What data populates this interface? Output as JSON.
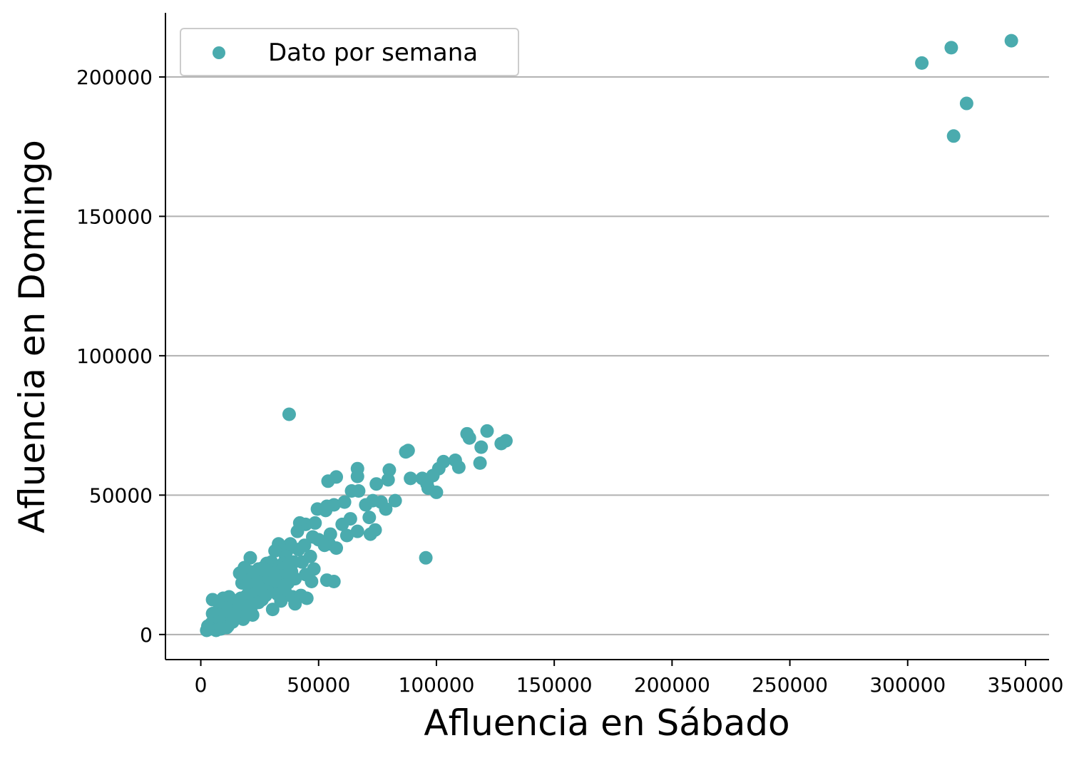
{
  "chart_data": {
    "type": "scatter",
    "xlabel": "Afluencia en Sábado",
    "ylabel": "Afluencia en Domingo",
    "xlim": [
      -15000,
      360000
    ],
    "ylim": [
      -9000,
      223000
    ],
    "xticks": [
      0,
      50000,
      100000,
      150000,
      200000,
      250000,
      300000,
      350000
    ],
    "xtick_labels": [
      "0",
      "50000",
      "100000",
      "150000",
      "200000",
      "250000",
      "300000",
      "350000"
    ],
    "yticks": [
      0,
      50000,
      100000,
      150000,
      200000
    ],
    "ytick_labels": [
      "0",
      "50000",
      "100000",
      "150000",
      "200000"
    ],
    "grid": "horizontal",
    "legend_position": "top-left",
    "marker_color": "#4AABAE",
    "series": [
      {
        "name": "Dato por semana",
        "points": [
          [
            306000,
            205000
          ],
          [
            318500,
            210500
          ],
          [
            344000,
            213000
          ],
          [
            325000,
            190500
          ],
          [
            319500,
            178800
          ],
          [
            37500,
            79000
          ],
          [
            95500,
            27500
          ],
          [
            129500,
            69500
          ],
          [
            121500,
            73000
          ],
          [
            127500,
            68500
          ],
          [
            113000,
            72000
          ],
          [
            114000,
            70500
          ],
          [
            119000,
            67200
          ],
          [
            118500,
            61500
          ],
          [
            108000,
            62500
          ],
          [
            109500,
            60000
          ],
          [
            103000,
            62000
          ],
          [
            101000,
            59500
          ],
          [
            98500,
            57000
          ],
          [
            96000,
            54000
          ],
          [
            94000,
            56000
          ],
          [
            96500,
            52500
          ],
          [
            100000,
            51000
          ],
          [
            89000,
            56000
          ],
          [
            87000,
            65500
          ],
          [
            88000,
            66000
          ],
          [
            80000,
            59000
          ],
          [
            79500,
            55500
          ],
          [
            74500,
            54000
          ],
          [
            66500,
            59500
          ],
          [
            66500,
            56700
          ],
          [
            57500,
            56500
          ],
          [
            54000,
            55000
          ],
          [
            64000,
            51500
          ],
          [
            67000,
            51500
          ],
          [
            73000,
            48000
          ],
          [
            76500,
            47500
          ],
          [
            78500,
            45000
          ],
          [
            82500,
            48000
          ],
          [
            70000,
            46500
          ],
          [
            71500,
            42000
          ],
          [
            74000,
            37500
          ],
          [
            72000,
            36000
          ],
          [
            66500,
            37000
          ],
          [
            63500,
            41500
          ],
          [
            61000,
            47500
          ],
          [
            56500,
            46500
          ],
          [
            53500,
            46000
          ],
          [
            49500,
            45000
          ],
          [
            53000,
            44500
          ],
          [
            60000,
            39500
          ],
          [
            62000,
            35500
          ],
          [
            57500,
            31000
          ],
          [
            54500,
            32500
          ],
          [
            48500,
            40000
          ],
          [
            44500,
            39500
          ],
          [
            42000,
            40000
          ],
          [
            41000,
            37000
          ],
          [
            47500,
            35000
          ],
          [
            44000,
            32000
          ],
          [
            50000,
            34000
          ],
          [
            52500,
            32000
          ],
          [
            55000,
            36000
          ],
          [
            43000,
            26000
          ],
          [
            46500,
            28000
          ],
          [
            41500,
            30500
          ],
          [
            38000,
            32500
          ],
          [
            36500,
            30000
          ],
          [
            33000,
            32500
          ],
          [
            31500,
            30000
          ],
          [
            36000,
            28000
          ],
          [
            39500,
            26000
          ],
          [
            35000,
            25500
          ],
          [
            33500,
            24000
          ],
          [
            30000,
            26000
          ],
          [
            28000,
            25500
          ],
          [
            26500,
            24000
          ],
          [
            24500,
            23500
          ],
          [
            21000,
            27500
          ],
          [
            23000,
            22000
          ],
          [
            27000,
            21000
          ],
          [
            31000,
            22000
          ],
          [
            34500,
            21000
          ],
          [
            38500,
            22500
          ],
          [
            40000,
            20000
          ],
          [
            37000,
            18500
          ],
          [
            33000,
            17000
          ],
          [
            29500,
            18000
          ],
          [
            26000,
            19000
          ],
          [
            22000,
            20000
          ],
          [
            19000,
            20500
          ],
          [
            17500,
            18500
          ],
          [
            20500,
            17000
          ],
          [
            24000,
            16500
          ],
          [
            28500,
            15500
          ],
          [
            32500,
            14500
          ],
          [
            36000,
            15000
          ],
          [
            39000,
            13500
          ],
          [
            42500,
            14000
          ],
          [
            45000,
            13000
          ],
          [
            47000,
            19000
          ],
          [
            53500,
            19500
          ],
          [
            56500,
            19000
          ],
          [
            48000,
            23500
          ],
          [
            44500,
            21500
          ],
          [
            30500,
            9000
          ],
          [
            34000,
            12000
          ],
          [
            40000,
            11000
          ],
          [
            26000,
            12500
          ],
          [
            22500,
            13500
          ],
          [
            19500,
            14000
          ],
          [
            17000,
            13000
          ],
          [
            14500,
            12000
          ],
          [
            12000,
            13500
          ],
          [
            9500,
            13000
          ],
          [
            5000,
            12500
          ],
          [
            8000,
            10500
          ],
          [
            10500,
            9500
          ],
          [
            13000,
            8500
          ],
          [
            16000,
            9000
          ],
          [
            18000,
            10500
          ],
          [
            20000,
            8000
          ],
          [
            22000,
            7000
          ],
          [
            18000,
            5500
          ],
          [
            15000,
            6500
          ],
          [
            12500,
            5500
          ],
          [
            10000,
            6000
          ],
          [
            7500,
            7000
          ],
          [
            5000,
            7500
          ],
          [
            11500,
            3000
          ],
          [
            9000,
            4000
          ],
          [
            6500,
            4500
          ],
          [
            4500,
            4000
          ],
          [
            3000,
            3000
          ],
          [
            2500,
            1500
          ],
          [
            4000,
            2000
          ],
          [
            6500,
            1500
          ],
          [
            8500,
            2000
          ],
          [
            11000,
            2500
          ],
          [
            13500,
            4500
          ],
          [
            14500,
            7500
          ],
          [
            16500,
            11000
          ],
          [
            21500,
            10000
          ],
          [
            24500,
            11500
          ],
          [
            27500,
            14000
          ],
          [
            25500,
            17000
          ],
          [
            23500,
            19000
          ],
          [
            21000,
            22500
          ],
          [
            18500,
            24000
          ],
          [
            16500,
            22000
          ],
          [
            29000,
            20000
          ],
          [
            31500,
            20000
          ],
          [
            35500,
            17500
          ],
          [
            38000,
            20500
          ],
          [
            27500,
            23000
          ]
        ]
      }
    ]
  }
}
